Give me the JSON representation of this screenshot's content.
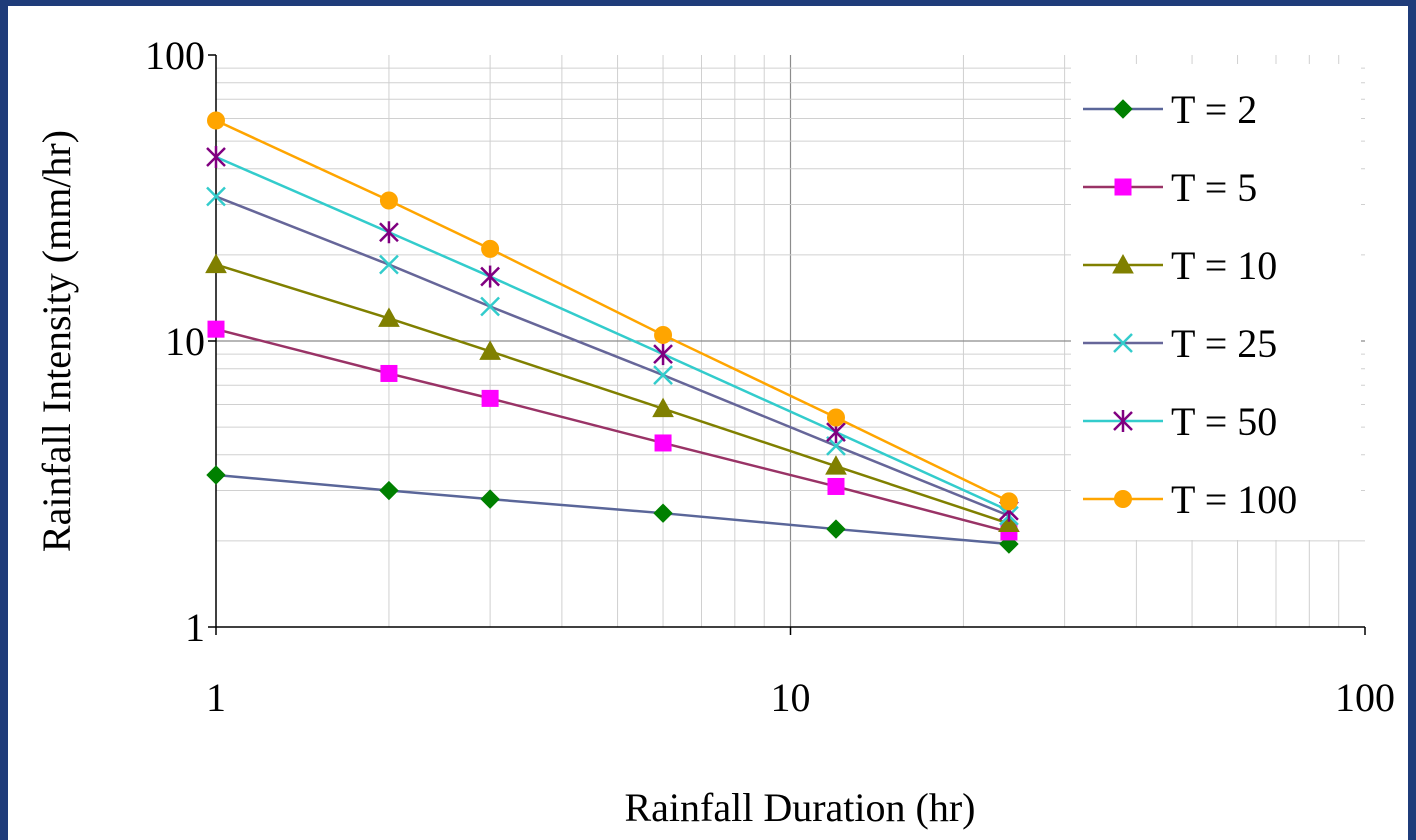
{
  "chart_data": {
    "type": "line",
    "x_scale": "log",
    "y_scale": "log",
    "xlabel": "Rainfall Duration (hr)",
    "ylabel": "Rainfall Intensity (mm/hr)",
    "xlim": [
      1,
      100
    ],
    "ylim": [
      1,
      100
    ],
    "x_ticks": [
      "1",
      "10",
      "100"
    ],
    "y_ticks": [
      "1",
      "10",
      "100"
    ],
    "grid": true,
    "legend": "right",
    "x": [
      1,
      2,
      3,
      6,
      12,
      24
    ],
    "series": [
      {
        "name": "T = 2",
        "color": "#008000",
        "marker": "diamond",
        "line_color": "#5a6699",
        "values": [
          3.4,
          3.0,
          2.8,
          2.5,
          2.2,
          1.95
        ]
      },
      {
        "name": "T = 5",
        "color": "#ff00ff",
        "marker": "square",
        "line_color": "#993366",
        "values": [
          11.0,
          7.7,
          6.3,
          4.4,
          3.1,
          2.15
        ]
      },
      {
        "name": "T = 10",
        "color": "#808000",
        "marker": "triangle",
        "line_color": "#808000",
        "values": [
          18.5,
          12.0,
          9.2,
          5.8,
          3.65,
          2.3
        ]
      },
      {
        "name": "T = 25",
        "color": "#33cccc",
        "marker": "x",
        "line_color": "#666699",
        "values": [
          32.0,
          18.5,
          13.2,
          7.6,
          4.3,
          2.45
        ]
      },
      {
        "name": "T = 50",
        "color": "#800080",
        "marker": "star",
        "line_color": "#33cccc",
        "values": [
          44.0,
          24.0,
          16.8,
          9.0,
          4.8,
          2.55
        ]
      },
      {
        "name": "T = 100",
        "color": "#ffa500",
        "marker": "circle",
        "line_color": "#ffa500",
        "values": [
          59.0,
          31.0,
          21.0,
          10.5,
          5.4,
          2.75
        ]
      }
    ]
  }
}
